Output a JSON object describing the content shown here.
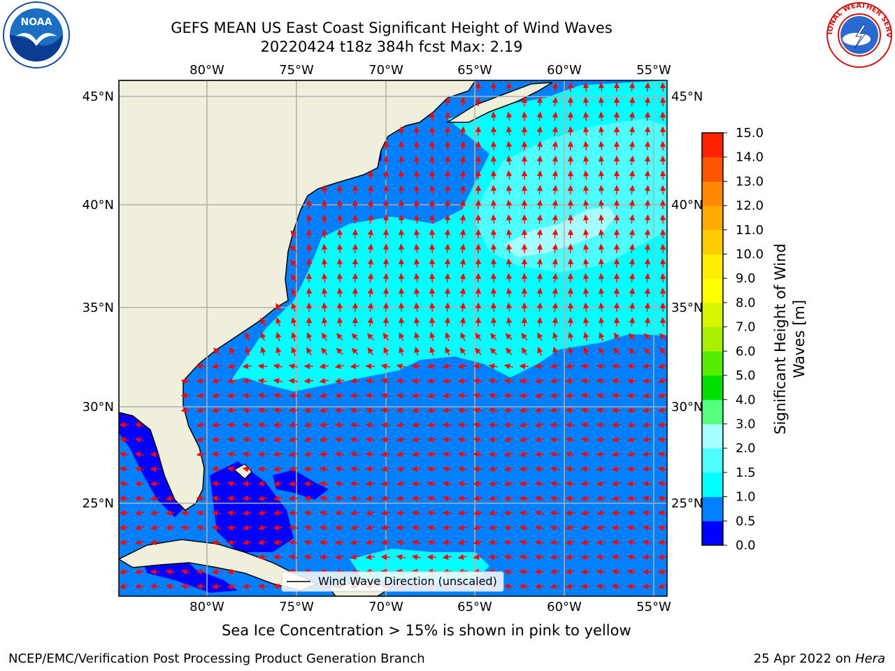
{
  "header": {
    "title_line1": "GEFS MEAN US East Coast Significant Height of Wind Waves",
    "title_line2": "20220424 t18z 384h fcst   Max: 2.19"
  },
  "map": {
    "lon_labels": [
      "80°W",
      "75°W",
      "70°W",
      "65°W",
      "60°W",
      "55°W"
    ],
    "lat_labels": [
      "45°N",
      "40°N",
      "35°N",
      "30°N",
      "25°N"
    ],
    "land_color": "#efefdc",
    "coast_color": "#000000",
    "grid_color": "#b0b0b0",
    "arrow_color": "#ff0000"
  },
  "colorbar": {
    "label_line1": "Significant Height of Wind",
    "label_line2": "Waves [m]",
    "ticks": [
      "15.0",
      "14.0",
      "13.0",
      "12.0",
      "11.0",
      "10.0",
      "9.0",
      "8.0",
      "7.0",
      "6.0",
      "5.0",
      "4.0",
      "3.0",
      "2.0",
      "1.5",
      "1.0",
      "0.5",
      "0.0"
    ],
    "colors": [
      "#0000ff",
      "#0080ff",
      "#00ffff",
      "#4dffff",
      "#a6ffff",
      "#55ff80",
      "#00e000",
      "#55ee00",
      "#aaee00",
      "#d6f500",
      "#ffff00",
      "#ffee00",
      "#ffcc00",
      "#ffaa00",
      "#ff8800",
      "#ff5500",
      "#ff2200"
    ]
  },
  "legend": {
    "label": "Wind Wave Direction (unscaled)"
  },
  "notes": {
    "ice": "Sea Ice Concentration > 15% is shown in pink to yellow",
    "producer": "NCEP/EMC/Verification Post Processing Product Generation Branch",
    "date": "25 Apr 2022 on ",
    "machine": "Hera"
  },
  "logos": {
    "noaa_text": "NOAA",
    "nws_text": "NATIONAL WEATHER SERVICE"
  }
}
